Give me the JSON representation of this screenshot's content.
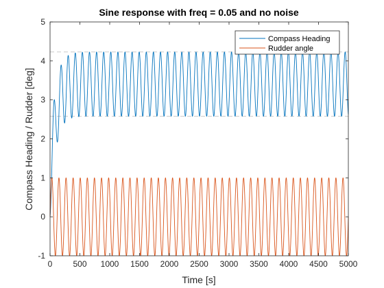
{
  "figure": {
    "background": "#ffffff"
  },
  "chart_data": {
    "type": "line",
    "title": "Sine response with freq = 0.05 and no noise",
    "xlabel": "Time [s]",
    "ylabel": "Compass Heading / Rudder [deg]",
    "xlim": [
      0,
      5000
    ],
    "ylim": [
      -1,
      5
    ],
    "xticks": [
      0,
      500,
      1000,
      1500,
      2000,
      2500,
      3000,
      3500,
      4000,
      4500,
      5000
    ],
    "xtick_labels": [
      "0",
      "500",
      "1000",
      "1500",
      "2000",
      "2500",
      "3000",
      "3500",
      "4000",
      "4500",
      "5000"
    ],
    "yticks": [
      -1,
      0,
      1,
      2,
      3,
      4,
      5
    ],
    "ytick_labels": [
      "-1",
      "0",
      "1",
      "2",
      "3",
      "4",
      "5"
    ],
    "grid": false,
    "legend_position": "top-right",
    "reference_lines": [
      {
        "y": 4.23,
        "color": "#cccccc",
        "style": "dashed"
      },
      {
        "y": 2.58,
        "color": "#cccccc",
        "style": "dashed"
      }
    ],
    "series": [
      {
        "name": "Compass Heading",
        "color": "#0072bd",
        "model": "damped_sine",
        "frequency_hz": 0.0084,
        "steady_center": 3.405,
        "steady_amplitude": 0.825,
        "start_value": 0.0,
        "time_constant_s": 90,
        "phase_lag_rad": 1.9,
        "points": [
          [
            0,
            0.0
          ],
          [
            30,
            2.1
          ],
          [
            60,
            2.85
          ],
          [
            90,
            2.2
          ],
          [
            120,
            1.72
          ],
          [
            175,
            3.73
          ],
          [
            230,
            2.3
          ],
          [
            295,
            4.0
          ],
          [
            350,
            2.45
          ],
          [
            410,
            4.15
          ],
          [
            470,
            2.53
          ],
          [
            5000,
            3.9
          ]
        ]
      },
      {
        "name": "Rudder angle",
        "color": "#d95319",
        "model": "sine",
        "frequency_hz": 0.0084,
        "center": 0.0,
        "amplitude": 1.0,
        "points": [
          [
            0,
            0.0
          ],
          [
            30,
            0.96
          ],
          [
            60,
            0.0
          ],
          [
            90,
            -1.0
          ],
          [
            119,
            0.0
          ],
          [
            5000,
            0.0
          ]
        ]
      }
    ]
  }
}
